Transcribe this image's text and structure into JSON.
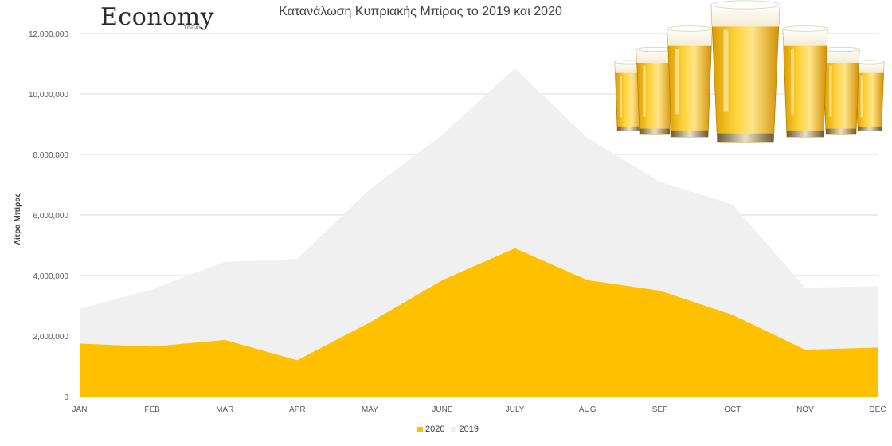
{
  "logo": {
    "main": "Economy",
    "sub": "TODAY"
  },
  "chart_data": {
    "type": "area",
    "title": "Κατανάλωση Κυπριακής Μπίρας το 2019 και 2020",
    "xlabel": "",
    "ylabel": "Λίτρα Μπίρας",
    "categories": [
      "JAN",
      "FEB",
      "MAR",
      "APR",
      "MAY",
      "JUNE",
      "JULY",
      "AUG",
      "SEP",
      "OCT",
      "NOV",
      "DEC"
    ],
    "ylim": [
      0,
      12000000
    ],
    "yticks": [
      "0",
      "2,000,000",
      "4,000,000",
      "6,000,000",
      "8,000,000",
      "10,000,000",
      "12,000,000"
    ],
    "grid": true,
    "legend_position": "bottom",
    "series": [
      {
        "name": "2019",
        "color": "#f0f0f0",
        "values": [
          2900000,
          3550000,
          4450000,
          4550000,
          6850000,
          8650000,
          10850000,
          8550000,
          7100000,
          6350000,
          3600000,
          3650000
        ]
      },
      {
        "name": "2020",
        "color": "#ffc000",
        "values": [
          1750000,
          1650000,
          1870000,
          1200000,
          2450000,
          3850000,
          4900000,
          3850000,
          3500000,
          2700000,
          1550000,
          1620000
        ]
      }
    ]
  },
  "legend": [
    {
      "label": "2020",
      "color": "#ffc000"
    },
    {
      "label": "2019",
      "color": "#f0f0f0"
    }
  ],
  "image": {
    "icon": "beer-glasses-icon"
  }
}
